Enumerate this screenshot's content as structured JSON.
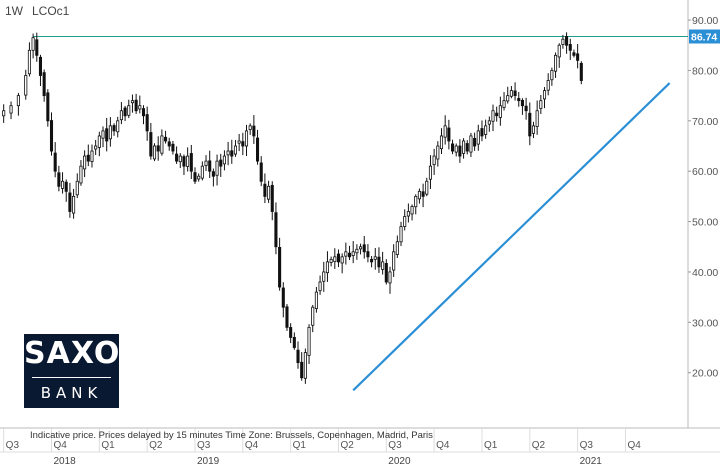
{
  "header": {
    "interval": "1W",
    "symbol": "LCOc1"
  },
  "footer_note": "Indicative price. Prices delayed by 15 minutes    Time Zone: Brussels, Copenhagen, Madrid, Paris",
  "logo": {
    "line1": "SAXO",
    "line2": "BANK"
  },
  "colors": {
    "candle": "#111111",
    "trendline": "#2b8fd6",
    "resistance": "#1f9e8f",
    "last_badge": "#2b8fd6"
  },
  "chart_data": {
    "type": "candlestick",
    "ylim": [
      12,
      92
    ],
    "y_ticks": [
      "90.00",
      "80.00",
      "70.00",
      "60.00",
      "50.00",
      "40.00",
      "30.00",
      "20.00"
    ],
    "y_tick_values": [
      90,
      80,
      70,
      60,
      50,
      40,
      30,
      20
    ],
    "last_price_label": "86.74",
    "last_price": 86.74,
    "x_quarters": [
      {
        "label": "Q3",
        "t": 0
      },
      {
        "label": "Q4",
        "t": 13
      },
      {
        "label": "Q1",
        "t": 26
      },
      {
        "label": "Q2",
        "t": 39
      },
      {
        "label": "Q3",
        "t": 52
      },
      {
        "label": "Q4",
        "t": 65
      },
      {
        "label": "Q1",
        "t": 78
      },
      {
        "label": "Q2",
        "t": 91
      },
      {
        "label": "Q3",
        "t": 104
      },
      {
        "label": "Q4",
        "t": 117
      },
      {
        "label": "Q1",
        "t": 130
      },
      {
        "label": "Q2",
        "t": 143
      },
      {
        "label": "Q3",
        "t": 156
      },
      {
        "label": "Q4",
        "t": 169
      }
    ],
    "x_years": [
      {
        "label": "2018",
        "t": 13
      },
      {
        "label": "2019",
        "t": 52
      },
      {
        "label": "2020",
        "t": 104
      },
      {
        "label": "2021",
        "t": 156
      }
    ],
    "resistance_level": 86.74,
    "trendline": {
      "from": {
        "t": 95,
        "y": 16.5
      },
      "to": {
        "t": 181,
        "y": 77.5
      }
    },
    "close_path": [
      [
        0,
        72
      ],
      [
        2,
        73
      ],
      [
        4,
        75
      ],
      [
        6,
        79
      ],
      [
        7,
        84
      ],
      [
        8,
        86.5
      ],
      [
        9,
        83
      ],
      [
        10,
        79
      ],
      [
        11,
        75
      ],
      [
        12,
        70
      ],
      [
        13,
        64
      ],
      [
        14,
        60
      ],
      [
        15,
        57
      ],
      [
        16,
        58
      ],
      [
        17,
        56
      ],
      [
        18,
        52
      ],
      [
        19,
        55
      ],
      [
        20,
        58
      ],
      [
        21,
        61
      ],
      [
        22,
        63
      ],
      [
        23,
        62
      ],
      [
        24,
        64
      ],
      [
        25,
        65
      ],
      [
        26,
        67
      ],
      [
        27,
        68
      ],
      [
        28,
        66
      ],
      [
        29,
        69
      ],
      [
        30,
        68
      ],
      [
        31,
        70
      ],
      [
        32,
        72
      ],
      [
        33,
        71
      ],
      [
        34,
        73
      ],
      [
        35,
        74
      ],
      [
        36,
        72
      ],
      [
        37,
        73
      ],
      [
        38,
        71
      ],
      [
        39,
        68
      ],
      [
        40,
        63
      ],
      [
        41,
        65
      ],
      [
        42,
        64
      ],
      [
        43,
        67
      ],
      [
        44,
        66
      ],
      [
        45,
        65
      ],
      [
        46,
        64
      ],
      [
        47,
        62
      ],
      [
        48,
        63
      ],
      [
        49,
        61
      ],
      [
        50,
        63
      ],
      [
        51,
        60
      ],
      [
        52,
        58
      ],
      [
        53,
        59
      ],
      [
        54,
        61
      ],
      [
        55,
        62
      ],
      [
        56,
        60
      ],
      [
        57,
        59
      ],
      [
        58,
        62
      ],
      [
        59,
        61
      ],
      [
        60,
        63
      ],
      [
        61,
        64
      ],
      [
        62,
        63
      ],
      [
        63,
        65
      ],
      [
        64,
        66
      ],
      [
        65,
        65
      ],
      [
        66,
        68
      ],
      [
        67,
        69
      ],
      [
        68,
        67
      ],
      [
        69,
        62
      ],
      [
        70,
        58
      ],
      [
        71,
        55
      ],
      [
        72,
        57
      ],
      [
        73,
        52
      ],
      [
        74,
        45
      ],
      [
        75,
        37
      ],
      [
        76,
        33
      ],
      [
        77,
        29
      ],
      [
        78,
        27
      ],
      [
        79,
        25
      ],
      [
        80,
        22
      ],
      [
        81,
        19
      ],
      [
        82,
        24
      ],
      [
        83,
        29
      ],
      [
        84,
        33
      ],
      [
        85,
        36
      ],
      [
        86,
        38
      ],
      [
        87,
        40
      ],
      [
        88,
        42
      ],
      [
        89,
        42.5
      ],
      [
        90,
        43
      ],
      [
        91,
        42
      ],
      [
        92,
        43
      ],
      [
        93,
        44
      ],
      [
        94,
        43
      ],
      [
        95,
        44
      ],
      [
        96,
        44.5
      ],
      [
        97,
        45
      ],
      [
        98,
        44
      ],
      [
        99,
        43
      ],
      [
        100,
        42
      ],
      [
        101,
        43
      ],
      [
        102,
        41
      ],
      [
        103,
        42
      ],
      [
        104,
        38
      ],
      [
        105,
        40
      ],
      [
        106,
        44
      ],
      [
        107,
        46
      ],
      [
        108,
        49
      ],
      [
        109,
        51
      ],
      [
        110,
        52
      ],
      [
        111,
        53
      ],
      [
        112,
        55
      ],
      [
        113,
        56
      ],
      [
        114,
        55
      ],
      [
        115,
        58
      ],
      [
        116,
        61
      ],
      [
        117,
        63
      ],
      [
        118,
        65
      ],
      [
        119,
        67
      ],
      [
        120,
        69
      ],
      [
        121,
        66
      ],
      [
        122,
        64
      ],
      [
        123,
        65
      ],
      [
        124,
        63
      ],
      [
        125,
        66
      ],
      [
        126,
        64
      ],
      [
        127,
        67
      ],
      [
        128,
        65
      ],
      [
        129,
        68
      ],
      [
        130,
        67
      ],
      [
        131,
        69
      ],
      [
        132,
        70
      ],
      [
        133,
        72
      ],
      [
        134,
        71
      ],
      [
        135,
        73
      ],
      [
        136,
        74
      ],
      [
        137,
        75
      ],
      [
        138,
        76
      ],
      [
        139,
        75
      ],
      [
        140,
        74
      ],
      [
        141,
        73
      ],
      [
        142,
        72
      ],
      [
        143,
        67
      ],
      [
        144,
        69
      ],
      [
        145,
        72
      ],
      [
        146,
        74
      ],
      [
        147,
        76
      ],
      [
        148,
        78
      ],
      [
        149,
        80
      ],
      [
        150,
        83
      ],
      [
        151,
        85
      ],
      [
        152,
        86.2
      ],
      [
        153,
        85
      ],
      [
        154,
        84
      ],
      [
        155,
        83
      ],
      [
        156,
        82
      ],
      [
        157,
        78
      ]
    ]
  }
}
